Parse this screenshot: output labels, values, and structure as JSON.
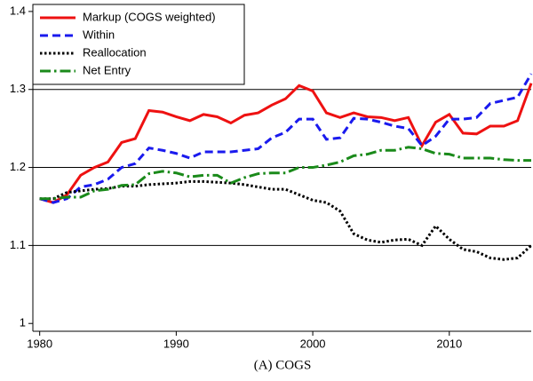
{
  "chart_data": {
    "type": "line",
    "caption": "(A) COGS",
    "x": [
      1980,
      1981,
      1982,
      1983,
      1984,
      1985,
      1986,
      1987,
      1988,
      1989,
      1990,
      1991,
      1992,
      1993,
      1994,
      1995,
      1996,
      1997,
      1998,
      1999,
      2000,
      2001,
      2002,
      2003,
      2004,
      2005,
      2006,
      2007,
      2008,
      2009,
      2010,
      2011,
      2012,
      2013,
      2014,
      2015,
      2016
    ],
    "series": [
      {
        "name": "Markup (COGS weighted)",
        "color": "#ee1111",
        "dash": "solid",
        "values": [
          1.16,
          1.155,
          1.165,
          1.19,
          1.2,
          1.207,
          1.232,
          1.237,
          1.273,
          1.271,
          1.265,
          1.26,
          1.268,
          1.265,
          1.257,
          1.267,
          1.27,
          1.28,
          1.288,
          1.305,
          1.298,
          1.27,
          1.264,
          1.27,
          1.265,
          1.264,
          1.26,
          1.264,
          1.228,
          1.258,
          1.268,
          1.244,
          1.243,
          1.253,
          1.253,
          1.26,
          1.308
        ]
      },
      {
        "name": "Within",
        "color": "#1a1aee",
        "dash": "dashed",
        "values": [
          1.16,
          1.155,
          1.16,
          1.175,
          1.178,
          1.185,
          1.2,
          1.205,
          1.225,
          1.222,
          1.218,
          1.212,
          1.22,
          1.22,
          1.22,
          1.222,
          1.224,
          1.238,
          1.245,
          1.262,
          1.262,
          1.236,
          1.238,
          1.263,
          1.262,
          1.258,
          1.253,
          1.25,
          1.228,
          1.24,
          1.262,
          1.262,
          1.264,
          1.282,
          1.286,
          1.29,
          1.32
        ]
      },
      {
        "name": "Reallocation",
        "color": "#000000",
        "dash": "dotted",
        "values": [
          1.16,
          1.16,
          1.168,
          1.17,
          1.172,
          1.173,
          1.176,
          1.176,
          1.178,
          1.179,
          1.18,
          1.182,
          1.182,
          1.181,
          1.18,
          1.178,
          1.175,
          1.172,
          1.172,
          1.165,
          1.158,
          1.155,
          1.144,
          1.115,
          1.107,
          1.104,
          1.107,
          1.108,
          1.1,
          1.125,
          1.108,
          1.095,
          1.092,
          1.084,
          1.082,
          1.084,
          1.1
        ]
      },
      {
        "name": "Net Entry",
        "color": "#1a8a1a",
        "dash": "dashdot",
        "values": [
          1.16,
          1.16,
          1.162,
          1.162,
          1.17,
          1.172,
          1.177,
          1.178,
          1.192,
          1.195,
          1.193,
          1.188,
          1.19,
          1.19,
          1.18,
          1.187,
          1.192,
          1.193,
          1.193,
          1.2,
          1.2,
          1.203,
          1.207,
          1.215,
          1.217,
          1.222,
          1.222,
          1.226,
          1.224,
          1.218,
          1.217,
          1.212,
          1.212,
          1.212,
          1.21,
          1.209,
          1.209
        ]
      }
    ],
    "xlim": [
      1979.5,
      2016
    ],
    "xticks": [
      1980,
      1990,
      2000,
      2010
    ],
    "ylim": [
      0.99,
      1.409
    ],
    "yticks": [
      1,
      1.1,
      1.2,
      1.3,
      1.4
    ],
    "grid": true,
    "legend": "top-left"
  }
}
